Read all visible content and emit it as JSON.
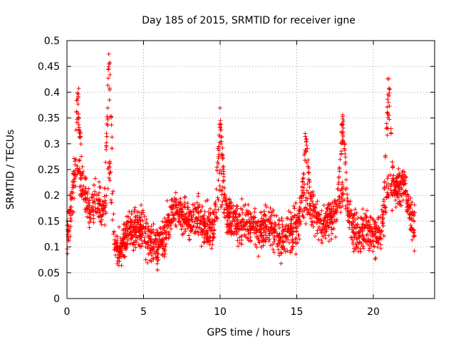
{
  "chart_data": {
    "type": "scatter",
    "title": "Day 185 of 2015, SRMTID for receiver igne",
    "xlabel": "GPS time / hours",
    "ylabel": "SRMTID / TECUs",
    "xlim": [
      0,
      24
    ],
    "ylim": [
      0,
      0.5
    ],
    "x_ticks": [
      0,
      5,
      10,
      15,
      20
    ],
    "x_tick_labels": [
      "0",
      "5",
      "10",
      "15",
      "20"
    ],
    "y_ticks": [
      0,
      0.05,
      0.1,
      0.15,
      0.2,
      0.25,
      0.3,
      0.35,
      0.4,
      0.45,
      0.5
    ],
    "y_tick_labels": [
      "0",
      "0.05",
      "0.1",
      "0.15",
      "0.2",
      "0.25",
      "0.3",
      "0.35",
      "0.4",
      "0.45",
      "0.5"
    ],
    "grid": true,
    "marker": "plus",
    "series": [
      {
        "name": "SRMTID",
        "color": "#ff0000",
        "x_range": [
          0.0,
          22.7
        ],
        "approximate": true,
        "profile": [
          [
            0.0,
            0.12
          ],
          [
            0.3,
            0.18
          ],
          [
            0.6,
            0.26
          ],
          [
            1.0,
            0.22
          ],
          [
            1.5,
            0.17
          ],
          [
            2.0,
            0.19
          ],
          [
            2.5,
            0.17
          ],
          [
            2.8,
            0.26
          ],
          [
            3.1,
            0.1
          ],
          [
            3.4,
            0.09
          ],
          [
            4.0,
            0.13
          ],
          [
            4.5,
            0.14
          ],
          [
            5.0,
            0.13
          ],
          [
            5.5,
            0.11
          ],
          [
            6.0,
            0.1
          ],
          [
            6.5,
            0.13
          ],
          [
            7.0,
            0.18
          ],
          [
            7.5,
            0.16
          ],
          [
            8.0,
            0.15
          ],
          [
            8.5,
            0.16
          ],
          [
            9.0,
            0.14
          ],
          [
            9.5,
            0.13
          ],
          [
            10.0,
            0.22
          ],
          [
            10.5,
            0.16
          ],
          [
            11.0,
            0.15
          ],
          [
            11.5,
            0.14
          ],
          [
            12.0,
            0.15
          ],
          [
            12.5,
            0.13
          ],
          [
            13.0,
            0.14
          ],
          [
            13.5,
            0.13
          ],
          [
            14.0,
            0.12
          ],
          [
            14.5,
            0.13
          ],
          [
            15.0,
            0.14
          ],
          [
            15.5,
            0.19
          ],
          [
            16.0,
            0.18
          ],
          [
            16.5,
            0.14
          ],
          [
            17.0,
            0.15
          ],
          [
            17.5,
            0.17
          ],
          [
            18.0,
            0.21
          ],
          [
            18.5,
            0.15
          ],
          [
            19.0,
            0.12
          ],
          [
            19.5,
            0.13
          ],
          [
            20.0,
            0.12
          ],
          [
            20.5,
            0.13
          ],
          [
            21.0,
            0.22
          ],
          [
            21.5,
            0.21
          ],
          [
            22.0,
            0.22
          ],
          [
            22.5,
            0.15
          ],
          [
            22.7,
            0.14
          ]
        ],
        "peaks": [
          {
            "x": 0.7,
            "y": 0.42
          },
          {
            "x": 2.75,
            "y": 0.48
          },
          {
            "x": 10.0,
            "y": 0.37
          },
          {
            "x": 15.6,
            "y": 0.33
          },
          {
            "x": 18.0,
            "y": 0.37
          },
          {
            "x": 21.0,
            "y": 0.44
          }
        ]
      }
    ]
  }
}
